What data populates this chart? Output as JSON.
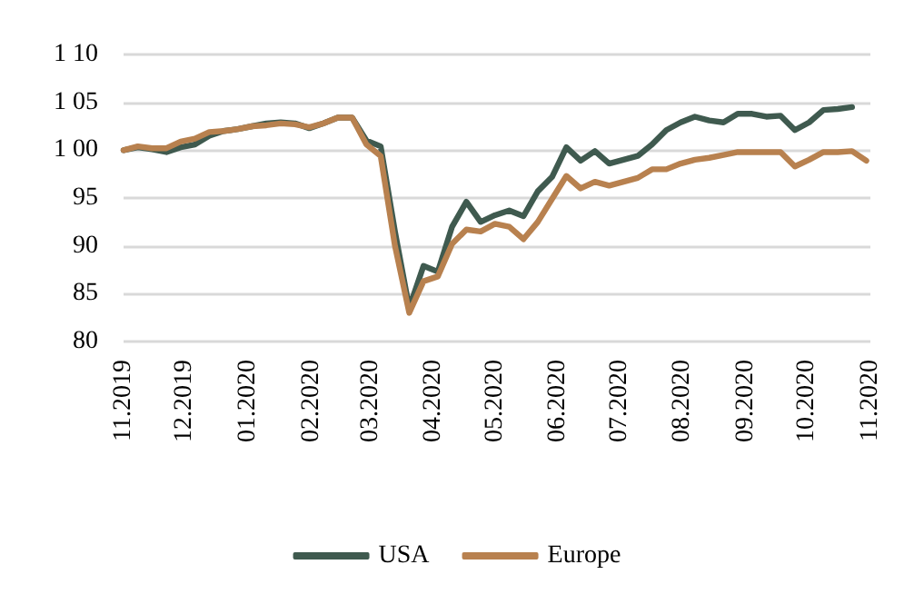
{
  "chart_data": {
    "type": "line",
    "x": [
      "2019-11-01",
      "2019-11-08",
      "2019-11-15",
      "2019-11-22",
      "2019-11-29",
      "2019-12-06",
      "2019-12-13",
      "2019-12-20",
      "2019-12-27",
      "2020-01-03",
      "2020-01-10",
      "2020-01-17",
      "2020-01-24",
      "2020-01-31",
      "2020-02-07",
      "2020-02-14",
      "2020-02-21",
      "2020-02-28",
      "2020-03-06",
      "2020-03-13",
      "2020-03-20",
      "2020-03-27",
      "2020-04-03",
      "2020-04-10",
      "2020-04-17",
      "2020-04-24",
      "2020-05-01",
      "2020-05-08",
      "2020-05-15",
      "2020-05-22",
      "2020-05-29",
      "2020-06-05",
      "2020-06-12",
      "2020-06-19",
      "2020-06-26",
      "2020-07-03",
      "2020-07-10",
      "2020-07-17",
      "2020-07-24",
      "2020-07-31",
      "2020-08-07",
      "2020-08-14",
      "2020-08-21",
      "2020-08-28",
      "2020-09-04",
      "2020-09-11",
      "2020-09-18",
      "2020-09-25",
      "2020-10-02",
      "2020-10-09",
      "2020-10-16",
      "2020-10-23",
      "2020-10-30"
    ],
    "series": [
      {
        "name": "USA",
        "color": "#3f5a4f",
        "values": [
          100.0,
          100.3,
          100.1,
          99.8,
          100.3,
          100.6,
          101.5,
          102.0,
          102.2,
          102.5,
          102.8,
          102.9,
          102.8,
          102.3,
          102.8,
          103.4,
          103.4,
          101.0,
          100.4,
          91.5,
          83.5,
          87.9,
          87.3,
          92.0,
          94.6,
          92.5,
          93.2,
          93.7,
          93.1,
          95.7,
          97.2,
          100.3,
          98.9,
          99.9,
          98.6,
          99.0,
          99.4,
          100.6,
          102.1,
          102.9,
          103.5,
          103.1,
          102.9,
          103.8,
          103.8,
          103.5,
          103.6,
          102.1,
          102.9,
          104.2,
          104.3,
          104.5,
          null
        ]
      },
      {
        "name": "Europe",
        "color": "#b8814f",
        "values": [
          100.0,
          100.4,
          100.2,
          100.2,
          100.9,
          101.2,
          101.9,
          102.0,
          102.2,
          102.5,
          102.6,
          102.8,
          102.7,
          102.4,
          102.8,
          103.4,
          103.4,
          100.6,
          99.4,
          90.0,
          83.0,
          86.3,
          86.8,
          90.2,
          91.7,
          91.5,
          92.3,
          92.0,
          90.7,
          92.5,
          94.9,
          97.3,
          96.0,
          96.7,
          96.3,
          96.7,
          97.1,
          98.0,
          98.0,
          98.6,
          99.0,
          99.2,
          99.5,
          99.8,
          99.8,
          99.8,
          99.8,
          98.3,
          99.0,
          99.8,
          99.8,
          99.9,
          98.9
        ]
      }
    ],
    "xlim": [
      "2019-11-01",
      "2020-11-01"
    ],
    "xticks": [
      {
        "value": "2019-11-01",
        "label": "11.2019"
      },
      {
        "value": "2019-12-01",
        "label": "12.2019"
      },
      {
        "value": "2020-01-01",
        "label": "01.2020"
      },
      {
        "value": "2020-02-01",
        "label": "02.2020"
      },
      {
        "value": "2020-03-01",
        "label": "03.2020"
      },
      {
        "value": "2020-04-01",
        "label": "04.2020"
      },
      {
        "value": "2020-05-01",
        "label": "05.2020"
      },
      {
        "value": "2020-06-01",
        "label": "06.2020"
      },
      {
        "value": "2020-07-01",
        "label": "07.2020"
      },
      {
        "value": "2020-08-01",
        "label": "08.2020"
      },
      {
        "value": "2020-09-01",
        "label": "09.2020"
      },
      {
        "value": "2020-10-01",
        "label": "10.2020"
      },
      {
        "value": "2020-11-01",
        "label": "11.2020"
      }
    ],
    "ylim": [
      80,
      110
    ],
    "yticks": [
      80,
      85,
      90,
      95,
      {
        "value": 100,
        "label": "1 00"
      },
      {
        "value": 105,
        "label": "1 05"
      },
      {
        "value": 110,
        "label": "1 10"
      }
    ],
    "grid": "y",
    "legend": "bottom",
    "marker": "none",
    "line_style": "solid"
  }
}
